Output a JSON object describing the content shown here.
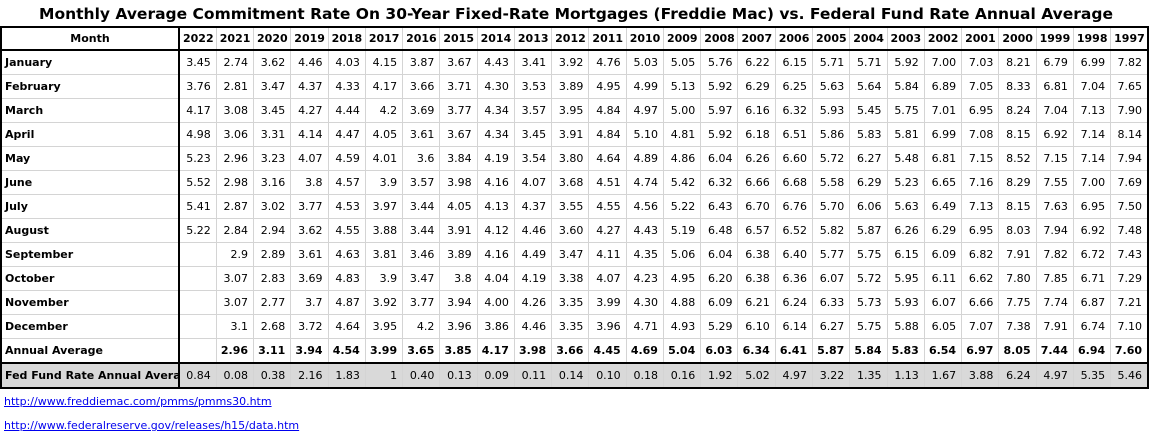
{
  "title": "Monthly Average Commitment Rate On 30-Year Fixed-Rate Mortgages (Freddie Mac) vs. Federal Fund Rate Annual Average",
  "table": {
    "header_label": "Month",
    "years": [
      "2022",
      "2021",
      "2020",
      "2019",
      "2018",
      "2017",
      "2016",
      "2015",
      "2014",
      "2013",
      "2012",
      "2011",
      "2010",
      "2009",
      "2008",
      "2007",
      "2006",
      "2005",
      "2004",
      "2003",
      "2002",
      "2001",
      "2000",
      "1999",
      "1998",
      "1997"
    ],
    "rows": [
      {
        "label": "January",
        "kind": "month",
        "values": [
          "3.45",
          "2.74",
          "3.62",
          "4.46",
          "4.03",
          "4.15",
          "3.87",
          "3.67",
          "4.43",
          "3.41",
          "3.92",
          "4.76",
          "5.03",
          "5.05",
          "5.76",
          "6.22",
          "6.15",
          "5.71",
          "5.71",
          "5.92",
          "7.00",
          "7.03",
          "8.21",
          "6.79",
          "6.99",
          "7.82"
        ]
      },
      {
        "label": "February",
        "kind": "month",
        "values": [
          "3.76",
          "2.81",
          "3.47",
          "4.37",
          "4.33",
          "4.17",
          "3.66",
          "3.71",
          "4.30",
          "3.53",
          "3.89",
          "4.95",
          "4.99",
          "5.13",
          "5.92",
          "6.29",
          "6.25",
          "5.63",
          "5.64",
          "5.84",
          "6.89",
          "7.05",
          "8.33",
          "6.81",
          "7.04",
          "7.65"
        ]
      },
      {
        "label": "March",
        "kind": "month",
        "values": [
          "4.17",
          "3.08",
          "3.45",
          "4.27",
          "4.44",
          "4.2",
          "3.69",
          "3.77",
          "4.34",
          "3.57",
          "3.95",
          "4.84",
          "4.97",
          "5.00",
          "5.97",
          "6.16",
          "6.32",
          "5.93",
          "5.45",
          "5.75",
          "7.01",
          "6.95",
          "8.24",
          "7.04",
          "7.13",
          "7.90"
        ]
      },
      {
        "label": "April",
        "kind": "month",
        "values": [
          "4.98",
          "3.06",
          "3.31",
          "4.14",
          "4.47",
          "4.05",
          "3.61",
          "3.67",
          "4.34",
          "3.45",
          "3.91",
          "4.84",
          "5.10",
          "4.81",
          "5.92",
          "6.18",
          "6.51",
          "5.86",
          "5.83",
          "5.81",
          "6.99",
          "7.08",
          "8.15",
          "6.92",
          "7.14",
          "8.14"
        ]
      },
      {
        "label": "May",
        "kind": "month",
        "values": [
          "5.23",
          "2.96",
          "3.23",
          "4.07",
          "4.59",
          "4.01",
          "3.6",
          "3.84",
          "4.19",
          "3.54",
          "3.80",
          "4.64",
          "4.89",
          "4.86",
          "6.04",
          "6.26",
          "6.60",
          "5.72",
          "6.27",
          "5.48",
          "6.81",
          "7.15",
          "8.52",
          "7.15",
          "7.14",
          "7.94"
        ]
      },
      {
        "label": "June",
        "kind": "month",
        "values": [
          "5.52",
          "2.98",
          "3.16",
          "3.8",
          "4.57",
          "3.9",
          "3.57",
          "3.98",
          "4.16",
          "4.07",
          "3.68",
          "4.51",
          "4.74",
          "5.42",
          "6.32",
          "6.66",
          "6.68",
          "5.58",
          "6.29",
          "5.23",
          "6.65",
          "7.16",
          "8.29",
          "7.55",
          "7.00",
          "7.69"
        ]
      },
      {
        "label": "July",
        "kind": "month",
        "values": [
          "5.41",
          "2.87",
          "3.02",
          "3.77",
          "4.53",
          "3.97",
          "3.44",
          "4.05",
          "4.13",
          "4.37",
          "3.55",
          "4.55",
          "4.56",
          "5.22",
          "6.43",
          "6.70",
          "6.76",
          "5.70",
          "6.06",
          "5.63",
          "6.49",
          "7.13",
          "8.15",
          "7.63",
          "6.95",
          "7.50"
        ]
      },
      {
        "label": "August",
        "kind": "month",
        "values": [
          "5.22",
          "2.84",
          "2.94",
          "3.62",
          "4.55",
          "3.88",
          "3.44",
          "3.91",
          "4.12",
          "4.46",
          "3.60",
          "4.27",
          "4.43",
          "5.19",
          "6.48",
          "6.57",
          "6.52",
          "5.82",
          "5.87",
          "6.26",
          "6.29",
          "6.95",
          "8.03",
          "7.94",
          "6.92",
          "7.48"
        ]
      },
      {
        "label": "September",
        "kind": "month",
        "values": [
          "",
          "2.9",
          "2.89",
          "3.61",
          "4.63",
          "3.81",
          "3.46",
          "3.89",
          "4.16",
          "4.49",
          "3.47",
          "4.11",
          "4.35",
          "5.06",
          "6.04",
          "6.38",
          "6.40",
          "5.77",
          "5.75",
          "6.15",
          "6.09",
          "6.82",
          "7.91",
          "7.82",
          "6.72",
          "7.43"
        ]
      },
      {
        "label": "October",
        "kind": "month",
        "values": [
          "",
          "3.07",
          "2.83",
          "3.69",
          "4.83",
          "3.9",
          "3.47",
          "3.8",
          "4.04",
          "4.19",
          "3.38",
          "4.07",
          "4.23",
          "4.95",
          "6.20",
          "6.38",
          "6.36",
          "6.07",
          "5.72",
          "5.95",
          "6.11",
          "6.62",
          "7.80",
          "7.85",
          "6.71",
          "7.29"
        ]
      },
      {
        "label": "November",
        "kind": "month",
        "values": [
          "",
          "3.07",
          "2.77",
          "3.7",
          "4.87",
          "3.92",
          "3.77",
          "3.94",
          "4.00",
          "4.26",
          "3.35",
          "3.99",
          "4.30",
          "4.88",
          "6.09",
          "6.21",
          "6.24",
          "6.33",
          "5.73",
          "5.93",
          "6.07",
          "6.66",
          "7.75",
          "7.74",
          "6.87",
          "7.21"
        ]
      },
      {
        "label": "December",
        "kind": "month",
        "values": [
          "",
          "3.1",
          "2.68",
          "3.72",
          "4.64",
          "3.95",
          "4.2",
          "3.96",
          "3.86",
          "4.46",
          "3.35",
          "3.96",
          "4.71",
          "4.93",
          "5.29",
          "6.10",
          "6.14",
          "6.27",
          "5.75",
          "5.88",
          "6.05",
          "7.07",
          "7.38",
          "7.91",
          "6.74",
          "7.10"
        ]
      },
      {
        "label": "Annual Average",
        "kind": "avg",
        "values": [
          "",
          "2.96",
          "3.11",
          "3.94",
          "4.54",
          "3.99",
          "3.65",
          "3.85",
          "4.17",
          "3.98",
          "3.66",
          "4.45",
          "4.69",
          "5.04",
          "6.03",
          "6.34",
          "6.41",
          "5.87",
          "5.84",
          "5.83",
          "6.54",
          "6.97",
          "8.05",
          "7.44",
          "6.94",
          "7.60"
        ]
      },
      {
        "label": "Fed Fund Rate Annual Average",
        "kind": "fed",
        "values": [
          "0.84",
          "0.08",
          "0.38",
          "2.16",
          "1.83",
          "1",
          "0.40",
          "0.13",
          "0.09",
          "0.11",
          "0.14",
          "0.10",
          "0.18",
          "0.16",
          "1.92",
          "5.02",
          "4.97",
          "3.22",
          "1.35",
          "1.13",
          "1.67",
          "3.88",
          "6.24",
          "4.97",
          "5.35",
          "5.46"
        ]
      }
    ]
  },
  "links": [
    "http://www.freddiemac.com/pmms/pmms30.htm",
    "http://www.federalreserve.gov/releases/h15/data.htm"
  ]
}
